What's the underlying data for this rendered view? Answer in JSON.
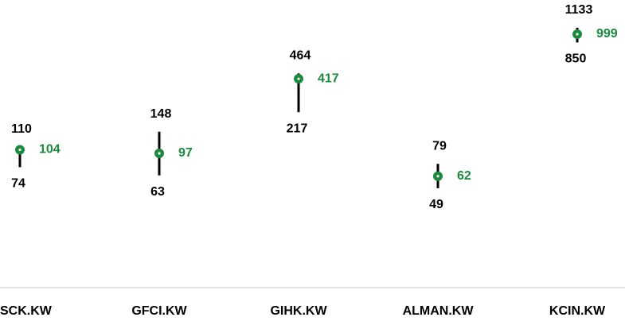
{
  "chart_data": {
    "type": "range",
    "categories": [
      "SCK.KW",
      "GFCI.KW",
      "GIHK.KW",
      "ALMAN.KW",
      "KCIN.KW"
    ],
    "high": [
      110,
      148,
      464,
      79,
      1133
    ],
    "low": [
      74,
      63,
      217,
      49,
      850
    ],
    "values": [
      104,
      97,
      417,
      62,
      999
    ],
    "range_color": "#000000",
    "color": "#1a8a3c",
    "ylim": [
      7,
      1950
    ],
    "log_scale": true
  }
}
